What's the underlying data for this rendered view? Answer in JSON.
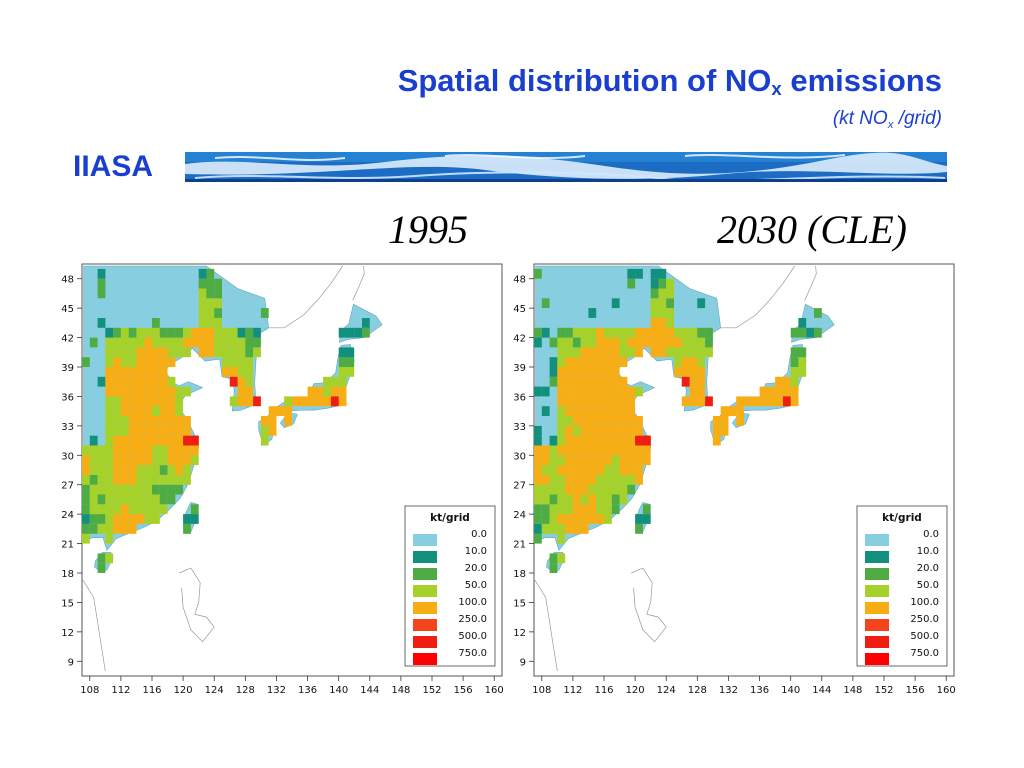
{
  "header": {
    "title_prefix": "Spatial distribution of NO",
    "title_sub": "x",
    "title_suffix": " emissions",
    "unit_prefix": "(kt NO",
    "unit_sub": "x",
    "unit_suffix": " /grid)",
    "org": "IIASA"
  },
  "panels": [
    {
      "year_label": "1995"
    },
    {
      "year_label": "2030 (CLE)"
    }
  ],
  "axes": {
    "x_ticks": [
      "108",
      "112",
      "116",
      "120",
      "124",
      "128",
      "132",
      "136",
      "140",
      "144",
      "148",
      "152",
      "156",
      "160"
    ],
    "y_ticks": [
      "48",
      "45",
      "42",
      "39",
      "36",
      "33",
      "30",
      "27",
      "24",
      "21",
      "18",
      "15",
      "12",
      "9"
    ],
    "x_range": [
      107,
      161
    ],
    "y_range": [
      7.5,
      49.5
    ]
  },
  "legend": {
    "title": "kt/grid",
    "items": [
      {
        "label": "0.0",
        "color": "#87cfe0"
      },
      {
        "label": "10.0",
        "color": "#138f7d"
      },
      {
        "label": "20.0",
        "color": "#4fac44"
      },
      {
        "label": "50.0",
        "color": "#a6d12a"
      },
      {
        "label": "100.0",
        "color": "#f7ad14"
      },
      {
        "label": "250.0",
        "color": "#f5441b"
      },
      {
        "label": "500.0",
        "color": "#f01d12"
      },
      {
        "label": "750.0",
        "color": "#ff0000"
      }
    ]
  }
}
